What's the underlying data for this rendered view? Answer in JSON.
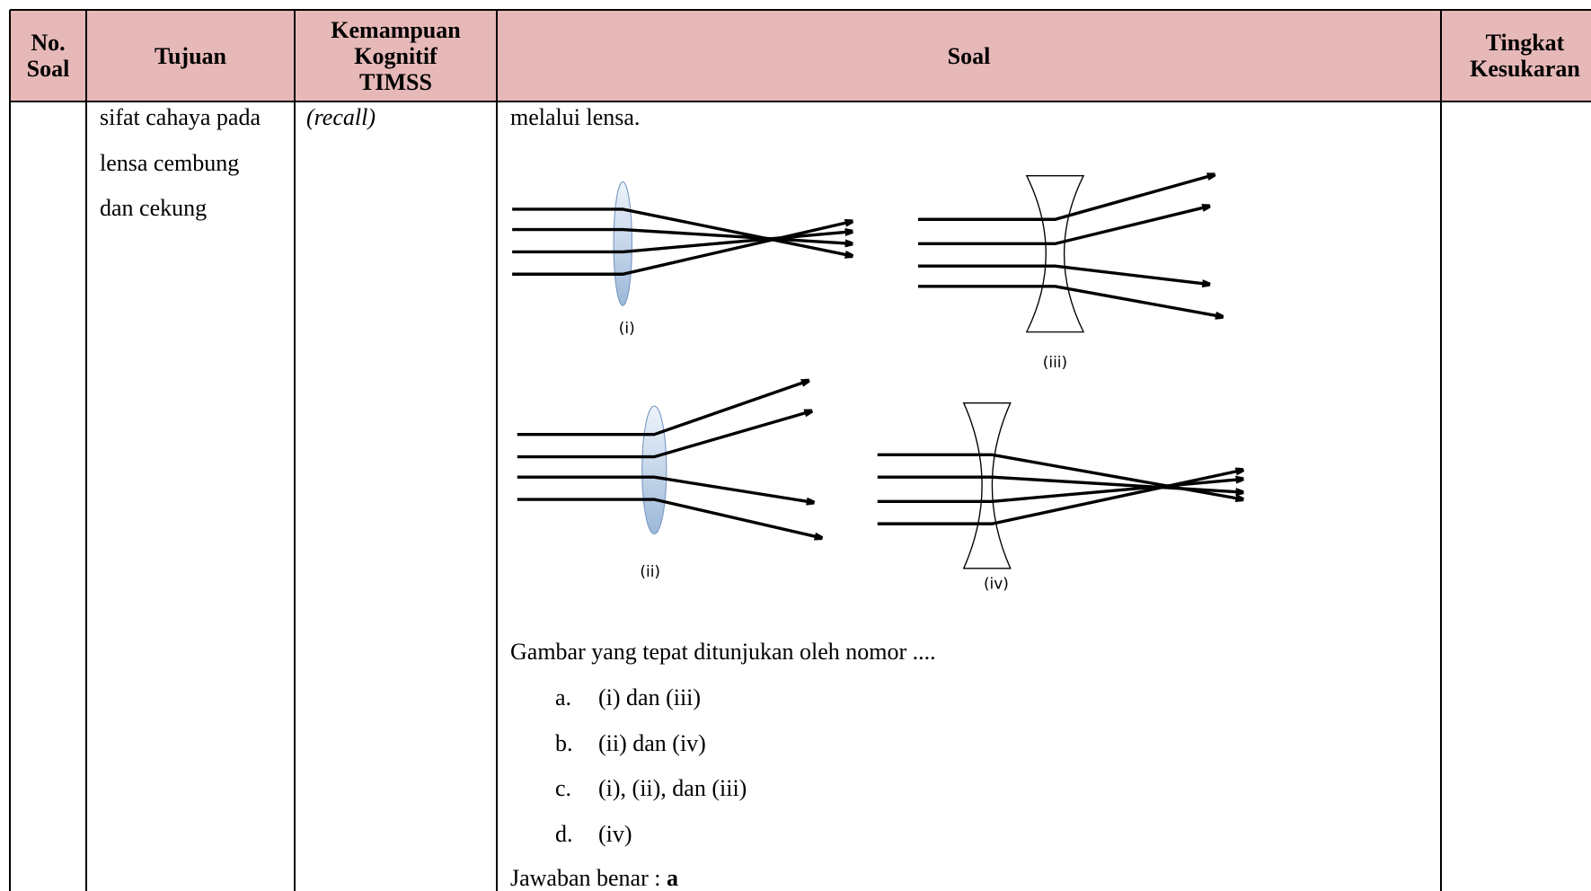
{
  "header": {
    "columns": [
      "No. Soal",
      "Tujuan",
      "Kemampuan Kognitif TIMSS",
      "Soal",
      "Tingkat Kesukaran"
    ]
  },
  "row": {
    "tujuan": [
      "sifat cahaya pada",
      "lensa cembung",
      "dan cekung"
    ],
    "kemampuan": "(recall)",
    "soal": {
      "intro": "melalui lensa.",
      "figure_labels": [
        "(i)",
        "(iii)",
        "(ii)",
        "(iv)"
      ],
      "question": "Gambar yang tepat ditunjukan oleh nomor ....",
      "options": [
        {
          "letter": "a.",
          "text": "(i) dan (iii)"
        },
        {
          "letter": "b.",
          "text": "(ii) dan (iv)"
        },
        {
          "letter": "c.",
          "text": "(i), (ii), dan (iii)"
        },
        {
          "letter": "d.",
          "text": "(iv)"
        }
      ],
      "answer_label": "Jawaban benar :",
      "answer": "a"
    }
  }
}
